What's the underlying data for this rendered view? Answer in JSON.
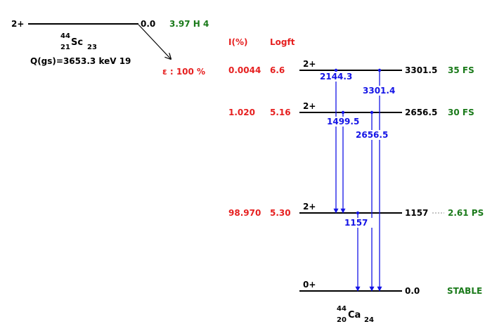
{
  "colors": {
    "level": "#000000",
    "transition": "#1414e6",
    "intensity": "#e62020",
    "halflife": "#1a7a1a",
    "text": "#000000"
  },
  "parent": {
    "spin": "2+",
    "energy": "0.0",
    "halflife": "3.97 H 4",
    "mass": "44",
    "z": "21",
    "symbol": "Sc",
    "n": "23",
    "qvalue": "Q(gs)=3653.3 keV 19",
    "decay_label": "ε : 100 %"
  },
  "headers": {
    "intensity": "I(%)",
    "logft": "Logft"
  },
  "daughter": {
    "mass": "44",
    "z": "20",
    "symbol": "Ca",
    "n": "24"
  },
  "levels": [
    {
      "energy": "3301.5",
      "spin": "2+",
      "halflife": "35 FS",
      "intensity": "0.0044",
      "logft": "6.6"
    },
    {
      "energy": "2656.5",
      "spin": "2+",
      "halflife": "30 FS",
      "intensity": "1.020",
      "logft": "5.16"
    },
    {
      "energy": "1157",
      "spin": "2+",
      "halflife": "2.61 PS",
      "intensity": "98.970",
      "logft": "5.30"
    },
    {
      "energy": "0.0",
      "spin": "0+",
      "halflife": "STABLE",
      "intensity": "",
      "logft": ""
    }
  ],
  "transitions": [
    {
      "label": "2144.3",
      "from": 0,
      "to": 2
    },
    {
      "label": "3301.4",
      "from": 0,
      "to": 3
    },
    {
      "label": "1499.5",
      "from": 1,
      "to": 2
    },
    {
      "label": "2656.5",
      "from": 1,
      "to": 3
    },
    {
      "label": "1157",
      "from": 2,
      "to": 3
    }
  ]
}
